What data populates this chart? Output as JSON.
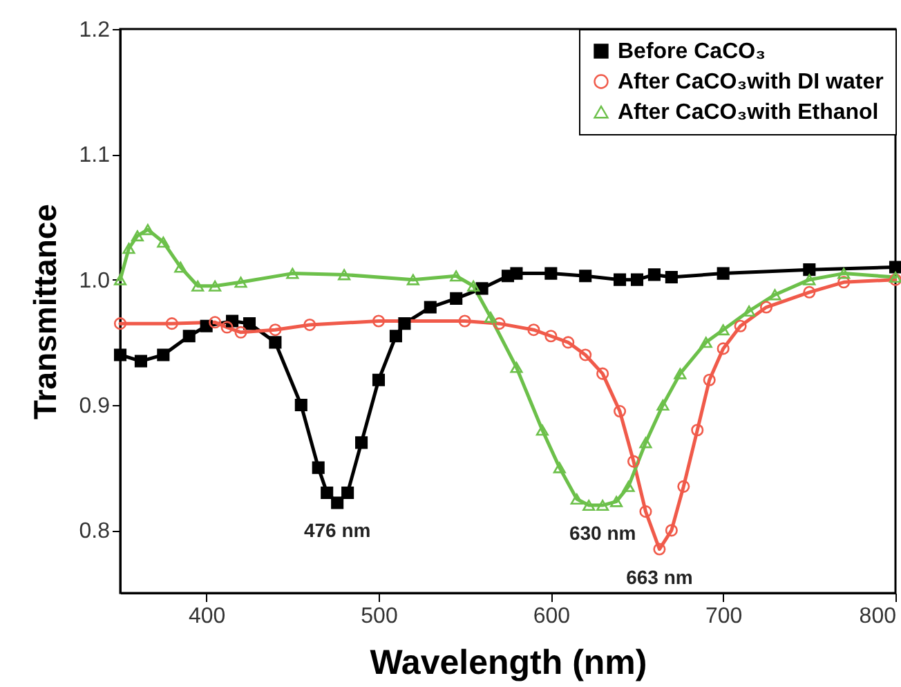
{
  "chart_data": {
    "type": "line",
    "xlabel": "Wavelength (nm)",
    "ylabel": "Transmittance",
    "xlim": [
      350,
      800
    ],
    "xticks": [
      400,
      500,
      600,
      700,
      800
    ],
    "ylim": [
      0.75,
      1.2
    ],
    "yticks": [
      0.8,
      0.9,
      {
        "value": 1,
        "label": "1.0"
      },
      1.1,
      1.2
    ],
    "grid": false,
    "legend": "top right",
    "series": [
      {
        "name": "Before CaCO₃",
        "color": "#000000",
        "marker": "square",
        "x": [
          350,
          362,
          375,
          390,
          400,
          415,
          425,
          440,
          455,
          465,
          470,
          476,
          482,
          490,
          500,
          510,
          515,
          530,
          545,
          560,
          575,
          580,
          600,
          620,
          640,
          650,
          660,
          670,
          700,
          750,
          800
        ],
        "values": [
          0.94,
          0.935,
          0.94,
          0.955,
          0.963,
          0.967,
          0.965,
          0.95,
          0.9,
          0.85,
          0.83,
          0.822,
          0.83,
          0.87,
          0.92,
          0.955,
          0.965,
          0.978,
          0.985,
          0.993,
          1.003,
          1.005,
          1.005,
          1.003,
          1.0,
          1.0,
          1.004,
          1.002,
          1.005,
          1.008,
          1.01
        ]
      },
      {
        "name": "After CaCO₃with DI water",
        "color": "#f05a4a",
        "marker": "circle",
        "x": [
          350,
          380,
          405,
          412,
          420,
          440,
          460,
          500,
          550,
          570,
          590,
          600,
          610,
          620,
          630,
          640,
          648,
          655,
          663,
          670,
          677,
          685,
          692,
          700,
          710,
          725,
          750,
          770,
          800
        ],
        "values": [
          0.965,
          0.965,
          0.966,
          0.962,
          0.958,
          0.96,
          0.964,
          0.967,
          0.967,
          0.965,
          0.96,
          0.955,
          0.95,
          0.94,
          0.925,
          0.895,
          0.855,
          0.815,
          0.785,
          0.8,
          0.835,
          0.88,
          0.92,
          0.945,
          0.963,
          0.978,
          0.99,
          0.998,
          1.0
        ]
      },
      {
        "name": "After CaCO₃with Ethanol",
        "color": "#6cc04a",
        "marker": "triangle",
        "x": [
          350,
          355,
          360,
          366,
          375,
          385,
          395,
          405,
          420,
          450,
          480,
          520,
          545,
          555,
          565,
          580,
          595,
          605,
          615,
          622,
          630,
          638,
          645,
          655,
          665,
          675,
          690,
          700,
          715,
          730,
          750,
          770,
          800
        ],
        "values": [
          1.0,
          1.025,
          1.035,
          1.04,
          1.03,
          1.01,
          0.995,
          0.995,
          0.998,
          1.005,
          1.004,
          1.0,
          1.003,
          0.995,
          0.97,
          0.93,
          0.88,
          0.85,
          0.825,
          0.82,
          0.82,
          0.823,
          0.835,
          0.87,
          0.9,
          0.925,
          0.95,
          0.96,
          0.975,
          0.988,
          1.0,
          1.005,
          1.002
        ]
      }
    ],
    "annotations": [
      {
        "text": "476 nm",
        "x": 476,
        "y": 0.822
      },
      {
        "text": "630 nm",
        "x": 630,
        "y": 0.82
      },
      {
        "text": "663 nm",
        "x": 663,
        "y": 0.785
      }
    ]
  }
}
